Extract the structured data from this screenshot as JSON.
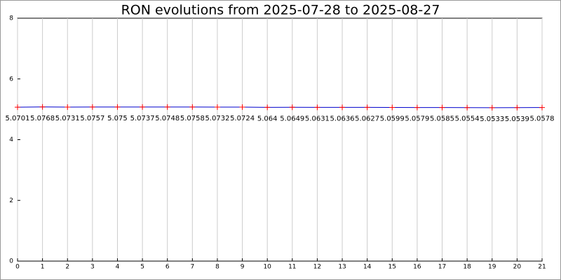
{
  "chart_data": {
    "type": "line",
    "title": "RON evolutions from 2025-07-28 to 2025-08-27",
    "x": [
      0,
      1,
      2,
      3,
      4,
      5,
      6,
      7,
      8,
      9,
      10,
      11,
      12,
      13,
      14,
      15,
      16,
      17,
      18,
      19,
      20,
      21
    ],
    "series": [
      {
        "name": "RON",
        "color": "#0000cc",
        "marker_color": "#ff0000",
        "values": [
          5.0701,
          5.0768,
          5.0731,
          5.0757,
          5.075,
          5.0737,
          5.0748,
          5.0758,
          5.0732,
          5.0724,
          5.064,
          5.0649,
          5.0631,
          5.0636,
          5.0627,
          5.0599,
          5.0579,
          5.0585,
          5.0554,
          5.0533,
          5.0539,
          5.0578
        ]
      }
    ],
    "xlim": [
      0,
      21
    ],
    "xticks": [
      0,
      1,
      2,
      3,
      4,
      5,
      6,
      7,
      8,
      9,
      10,
      11,
      12,
      13,
      14,
      15,
      16,
      17,
      18,
      19,
      20,
      21
    ],
    "ylim": [
      0,
      8
    ],
    "yticks": [
      0,
      2,
      4,
      6,
      8
    ],
    "grid": "x"
  }
}
